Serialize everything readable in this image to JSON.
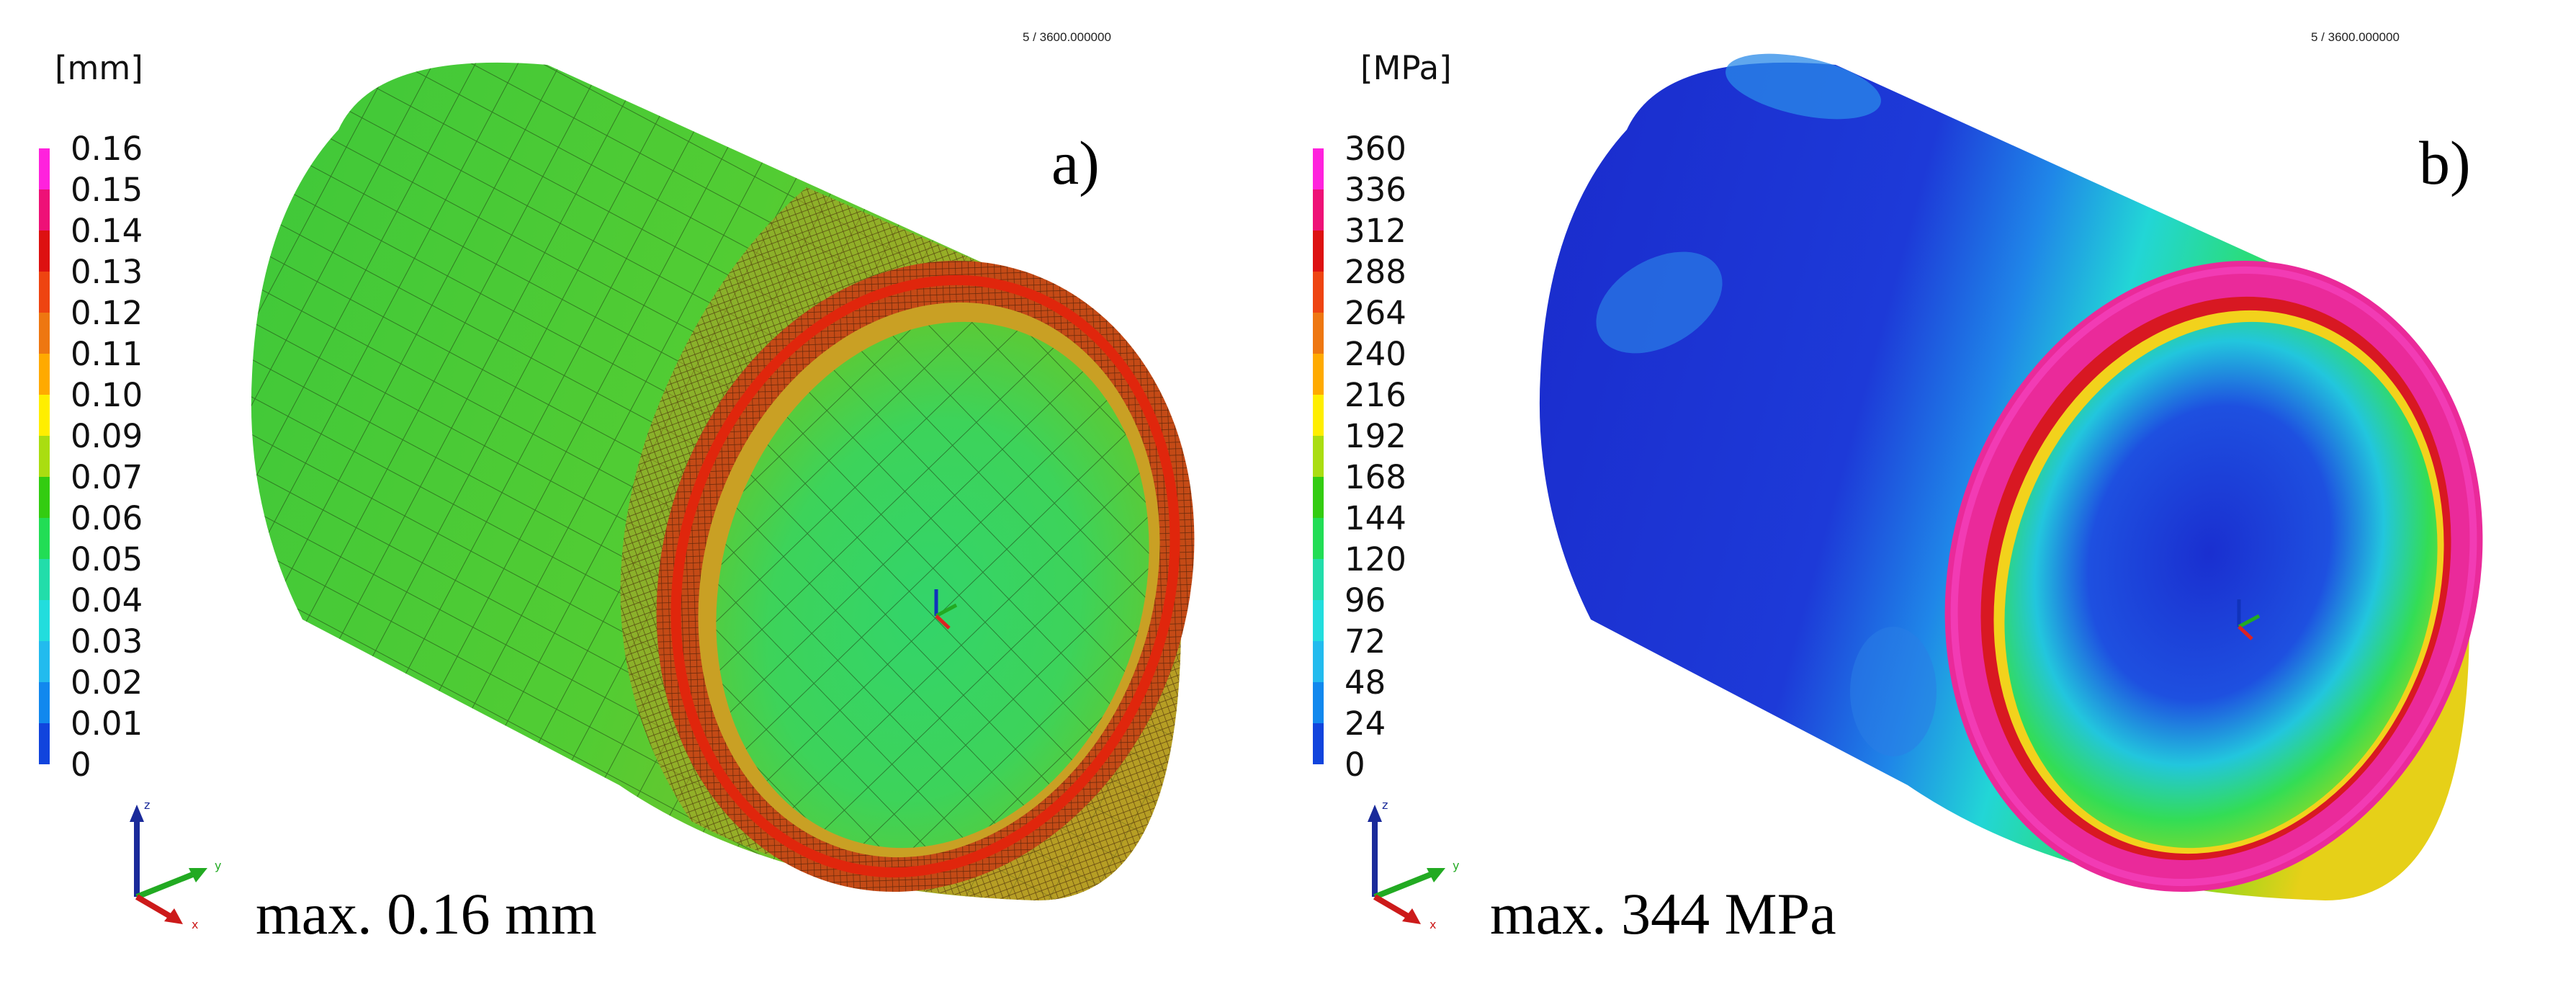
{
  "panels": [
    {
      "id": "a",
      "tag": "a)",
      "step_label": "5 / 3600.000000",
      "unit": "[mm]",
      "legend_ticks": [
        "0.16",
        "0.15",
        "0.14",
        "0.13",
        "0.12",
        "0.11",
        "0.10",
        "0.09",
        "0.07",
        "0.06",
        "0.05",
        "0.04",
        "0.03",
        "0.02",
        "0.01",
        "0"
      ],
      "legend_colors": [
        "#ff22dd",
        "#ee1177",
        "#dd1111",
        "#ee4411",
        "#ee7711",
        "#ffaa00",
        "#ffee00",
        "#aadd11",
        "#33cc11",
        "#22dd55",
        "#22ddaa",
        "#22dddd",
        "#22bbee",
        "#1188ee",
        "#1144dd"
      ],
      "max_label": "max. 0.16 mm",
      "axis_labels": {
        "z": "z",
        "y": "y",
        "x": "x"
      },
      "style": "mesh"
    },
    {
      "id": "b",
      "tag": "b)",
      "step_label": "5 / 3600.000000",
      "unit": "[MPa]",
      "legend_ticks": [
        "360",
        "336",
        "312",
        "288",
        "264",
        "240",
        "216",
        "192",
        "168",
        "144",
        "120",
        "96",
        "72",
        "48",
        "24",
        "0"
      ],
      "legend_colors": [
        "#ff22dd",
        "#ee1177",
        "#dd1111",
        "#ee4411",
        "#ee7711",
        "#ffaa00",
        "#ffee00",
        "#aadd11",
        "#33cc11",
        "#22dd55",
        "#22ddaa",
        "#22dddd",
        "#22bbee",
        "#1188ee",
        "#1144dd"
      ],
      "max_label": "max. 344 MPa",
      "axis_labels": {
        "z": "z",
        "y": "y",
        "x": "x"
      },
      "style": "stress"
    }
  ]
}
